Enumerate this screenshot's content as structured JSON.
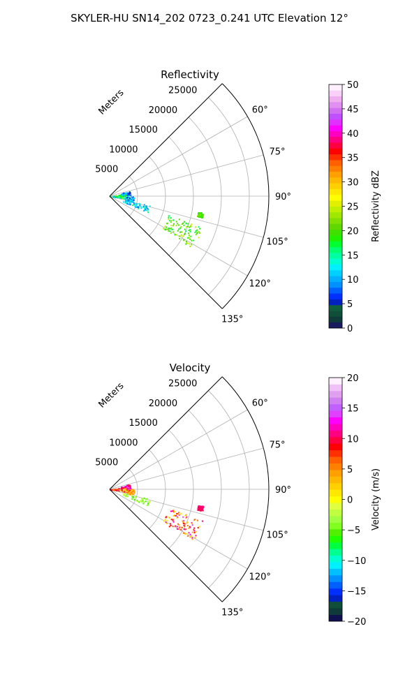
{
  "figure": {
    "suptitle": "SKYLER-HU  SN14_202  0723_0.241 UTC Elevation 12°"
  },
  "chart_data": [
    {
      "type": "polar-sector",
      "title": "Reflectivity",
      "radial_label": "Meters",
      "theta_range_deg": [
        45,
        135
      ],
      "r_range_m": [
        0,
        28500
      ],
      "radial_ticks": [
        5000,
        10000,
        15000,
        20000,
        25000
      ],
      "radial_tick_labels": [
        "5000",
        "10000",
        "15000",
        "20000",
        "25000"
      ],
      "angle_ticks_deg": [
        60,
        75,
        90,
        105,
        120,
        135
      ],
      "angle_tick_labels": [
        "60°",
        "75°",
        "90°",
        "105°",
        "120°",
        "135°"
      ],
      "grid": true,
      "colorbar": {
        "label": "Reflectivity dBZ",
        "range": [
          0,
          50
        ],
        "ticks": [
          0,
          5,
          10,
          15,
          20,
          25,
          30,
          35,
          40,
          45,
          50
        ],
        "tick_labels": [
          "0",
          "5",
          "10",
          "15",
          "20",
          "25",
          "30",
          "35",
          "40",
          "45",
          "50"
        ],
        "colors": [
          "#1a1a5e",
          "#0f3a3a",
          "#0f4f3a",
          "#0f5f3f",
          "#0020c0",
          "#0030ff",
          "#0060ff",
          "#0090ff",
          "#00b0ff",
          "#00d0ff",
          "#00f0ff",
          "#00ffd0",
          "#00ffa0",
          "#00ff70",
          "#00ff30",
          "#20f000",
          "#40e000",
          "#60d800",
          "#80e000",
          "#a0e800",
          "#c0f000",
          "#e0f000",
          "#ffff00",
          "#ffe800",
          "#ffd000",
          "#ffb800",
          "#ffa000",
          "#ff8000",
          "#ff6000",
          "#ff3000",
          "#ff0000",
          "#ff0040",
          "#ff0080",
          "#ff00c0",
          "#ff00ff",
          "#e030ff",
          "#c050ff",
          "#d070f0",
          "#e090f0",
          "#f0b0f0",
          "#f8d0f8",
          "#fff0ff"
        ]
      },
      "data_note_clusters": [
        {
          "theta_deg": [
            75,
            88
          ],
          "r_m": [
            2000,
            3700
          ],
          "value": [
            3,
            12
          ]
        },
        {
          "theta_deg": [
            89,
            103
          ],
          "r_m": [
            2800,
            4400
          ],
          "value": [
            5,
            14
          ]
        },
        {
          "theta_deg": [
            103,
            113
          ],
          "r_m": [
            2500,
            7500
          ],
          "value": [
            8,
            16
          ]
        },
        {
          "theta_deg": [
            108,
            122
          ],
          "r_m": [
            11000,
            17500
          ],
          "value": [
            16,
            25
          ]
        },
        {
          "theta_deg": [
            81,
            99
          ],
          "r_m": [
            0,
            2800
          ],
          "value": [
            10,
            22
          ]
        },
        {
          "theta_deg": [
            100,
            103
          ],
          "r_m": [
            16000,
            17000
          ],
          "value": [
            18,
            22
          ]
        }
      ]
    },
    {
      "type": "polar-sector",
      "title": "Velocity",
      "radial_label": "Meters",
      "theta_range_deg": [
        45,
        135
      ],
      "r_range_m": [
        0,
        28500
      ],
      "radial_ticks": [
        5000,
        10000,
        15000,
        20000,
        25000
      ],
      "radial_tick_labels": [
        "5000",
        "10000",
        "15000",
        "20000",
        "25000"
      ],
      "angle_ticks_deg": [
        60,
        75,
        90,
        105,
        120,
        135
      ],
      "angle_tick_labels": [
        "60°",
        "75°",
        "90°",
        "105°",
        "120°",
        "135°"
      ],
      "grid": true,
      "colorbar": {
        "label": "Velocity (m/s)",
        "range": [
          -20,
          20
        ],
        "ticks": [
          -20,
          -15,
          -10,
          -5,
          0,
          5,
          10,
          15,
          20
        ],
        "tick_labels": [
          "−20",
          "−15",
          "−10",
          "−5",
          "0",
          "5",
          "10",
          "15",
          "20"
        ],
        "colors": [
          "#101050",
          "#0f3a3a",
          "#0f4f3a",
          "#0020c0",
          "#0030ff",
          "#0060ff",
          "#0090ff",
          "#00c0ff",
          "#00f0ff",
          "#00ffd0",
          "#00ff90",
          "#00ff40",
          "#20ff00",
          "#50f000",
          "#80ff20",
          "#a0ff40",
          "#c0ff40",
          "#e0ff40",
          "#ffff00",
          "#ffe800",
          "#ffd000",
          "#ffb800",
          "#ffa000",
          "#ff8000",
          "#ff6000",
          "#ff3000",
          "#ff0000",
          "#ff0040",
          "#ff0080",
          "#ff00c0",
          "#ff00ff",
          "#e040ff",
          "#c060ff",
          "#d080f0",
          "#e0a0f0",
          "#f0c0f8",
          "#fff0ff"
        ]
      },
      "data_note_clusters": [
        {
          "theta_deg": [
            75,
            88
          ],
          "r_m": [
            2000,
            3700
          ],
          "value": [
            9,
            14
          ]
        },
        {
          "theta_deg": [
            89,
            103
          ],
          "r_m": [
            2800,
            4400
          ],
          "value": [
            2,
            8
          ]
        },
        {
          "theta_deg": [
            103,
            113
          ],
          "r_m": [
            2500,
            7500
          ],
          "value": [
            -6,
            -1
          ]
        },
        {
          "theta_deg": [
            108,
            122
          ],
          "r_m": [
            11000,
            17500
          ],
          "value": [
            0,
            14
          ]
        },
        {
          "theta_deg": [
            81,
            99
          ],
          "r_m": [
            0,
            2800
          ],
          "value": [
            -3,
            12
          ]
        },
        {
          "theta_deg": [
            100,
            103
          ],
          "r_m": [
            16000,
            17000
          ],
          "value": [
            8,
            12
          ]
        }
      ]
    }
  ]
}
